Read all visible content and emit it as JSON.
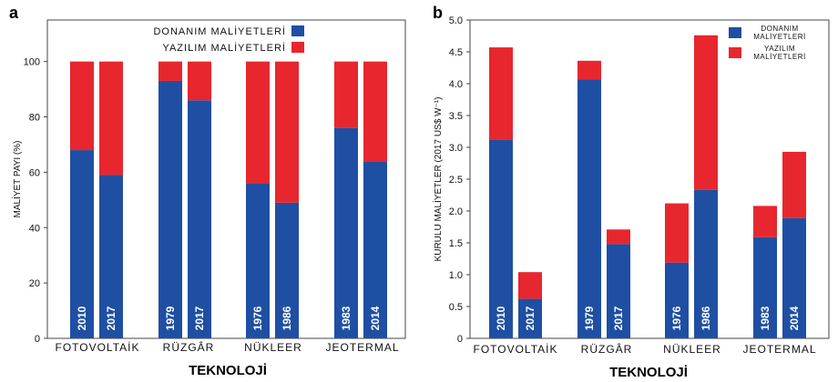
{
  "colors": {
    "hardware": "#1f4fa3",
    "software": "#e8262e"
  },
  "chart_data": [
    {
      "panel": "a",
      "type": "bar",
      "stacked": true,
      "ylabel": "MALİYET PAYI  (%)",
      "xlabel": "TEKNOLOJİ",
      "ylim": [
        0,
        115
      ],
      "yticks": [
        "0",
        "20",
        "40",
        "60",
        "80",
        "100"
      ],
      "legend": {
        "position": "top-right",
        "items": [
          "DONANIM MALİYETLERİ",
          "YAZILIM MALİYETLERİ"
        ]
      },
      "groups": [
        "FOTOVOLTAİK",
        "RÜZGÂR",
        "NÜKLEER",
        "JEOTERMAL"
      ],
      "bars": [
        {
          "group": 0,
          "year": "2010",
          "hardware": 68,
          "software": 32
        },
        {
          "group": 0,
          "year": "2017",
          "hardware": 59,
          "software": 41
        },
        {
          "group": 1,
          "year": "1979",
          "hardware": 93,
          "software": 7
        },
        {
          "group": 1,
          "year": "2017",
          "hardware": 86,
          "software": 14
        },
        {
          "group": 2,
          "year": "1976",
          "hardware": 56,
          "software": 44
        },
        {
          "group": 2,
          "year": "1986",
          "hardware": 49,
          "software": 51
        },
        {
          "group": 3,
          "year": "1983",
          "hardware": 76,
          "software": 24
        },
        {
          "group": 3,
          "year": "2014",
          "hardware": 64,
          "software": 36
        }
      ]
    },
    {
      "panel": "b",
      "type": "bar",
      "stacked": true,
      "ylabel": "KURULU MALİYETLER (2017 US$ W⁻¹)",
      "xlabel": "TEKNOLOJİ",
      "ylim": [
        0,
        5.0
      ],
      "yticks": [
        "0",
        "0.5",
        "1.0",
        "1.5",
        "2.0",
        "2.5",
        "3.0",
        "3.5",
        "4.0",
        "4.5",
        "5.0"
      ],
      "legend": {
        "position": "top-right",
        "items": [
          [
            "DONANIM",
            "MALİYETLERİ"
          ],
          [
            "YAZILIM",
            "MALİYETLERİ"
          ]
        ]
      },
      "groups": [
        "FOTOVOLTAİK",
        "RÜZGÂR",
        "NÜKLEER",
        "JEOTERMAL"
      ],
      "bars": [
        {
          "group": 0,
          "year": "2010",
          "hardware": 3.12,
          "software": 1.45
        },
        {
          "group": 0,
          "year": "2017",
          "hardware": 0.62,
          "software": 0.42
        },
        {
          "group": 1,
          "year": "1979",
          "hardware": 4.07,
          "software": 0.29
        },
        {
          "group": 1,
          "year": "2017",
          "hardware": 1.48,
          "software": 0.23
        },
        {
          "group": 2,
          "year": "1976",
          "hardware": 1.19,
          "software": 0.93
        },
        {
          "group": 2,
          "year": "1986",
          "hardware": 2.33,
          "software": 2.43
        },
        {
          "group": 3,
          "year": "1983",
          "hardware": 1.59,
          "software": 0.49
        },
        {
          "group": 3,
          "year": "2014",
          "hardware": 1.89,
          "software": 1.04
        }
      ]
    }
  ]
}
